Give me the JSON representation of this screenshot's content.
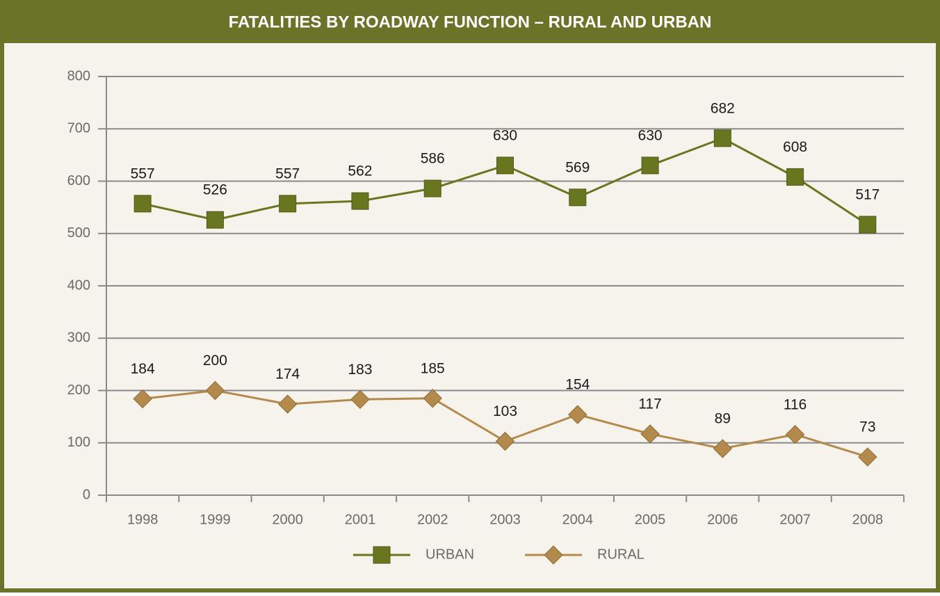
{
  "chart_data": {
    "type": "line",
    "title": "FATALITIES BY ROADWAY FUNCTION – RURAL AND URBAN",
    "categories": [
      "1998",
      "1999",
      "2000",
      "2001",
      "2002",
      "2003",
      "2004",
      "2005",
      "2006",
      "2007",
      "2008"
    ],
    "series": [
      {
        "name": "URBAN",
        "color": "#67761f",
        "marker": "square",
        "values": [
          557,
          526,
          557,
          562,
          586,
          630,
          569,
          630,
          682,
          608,
          517
        ]
      },
      {
        "name": "RURAL",
        "color": "#b38a4c",
        "marker": "diamond",
        "values": [
          184,
          200,
          174,
          183,
          185,
          103,
          154,
          117,
          89,
          116,
          73
        ]
      }
    ],
    "ylim": [
      0,
      800
    ],
    "yticks": [
      0,
      100,
      200,
      300,
      400,
      500,
      600,
      700,
      800
    ],
    "grid": true,
    "legend": "bottom"
  }
}
